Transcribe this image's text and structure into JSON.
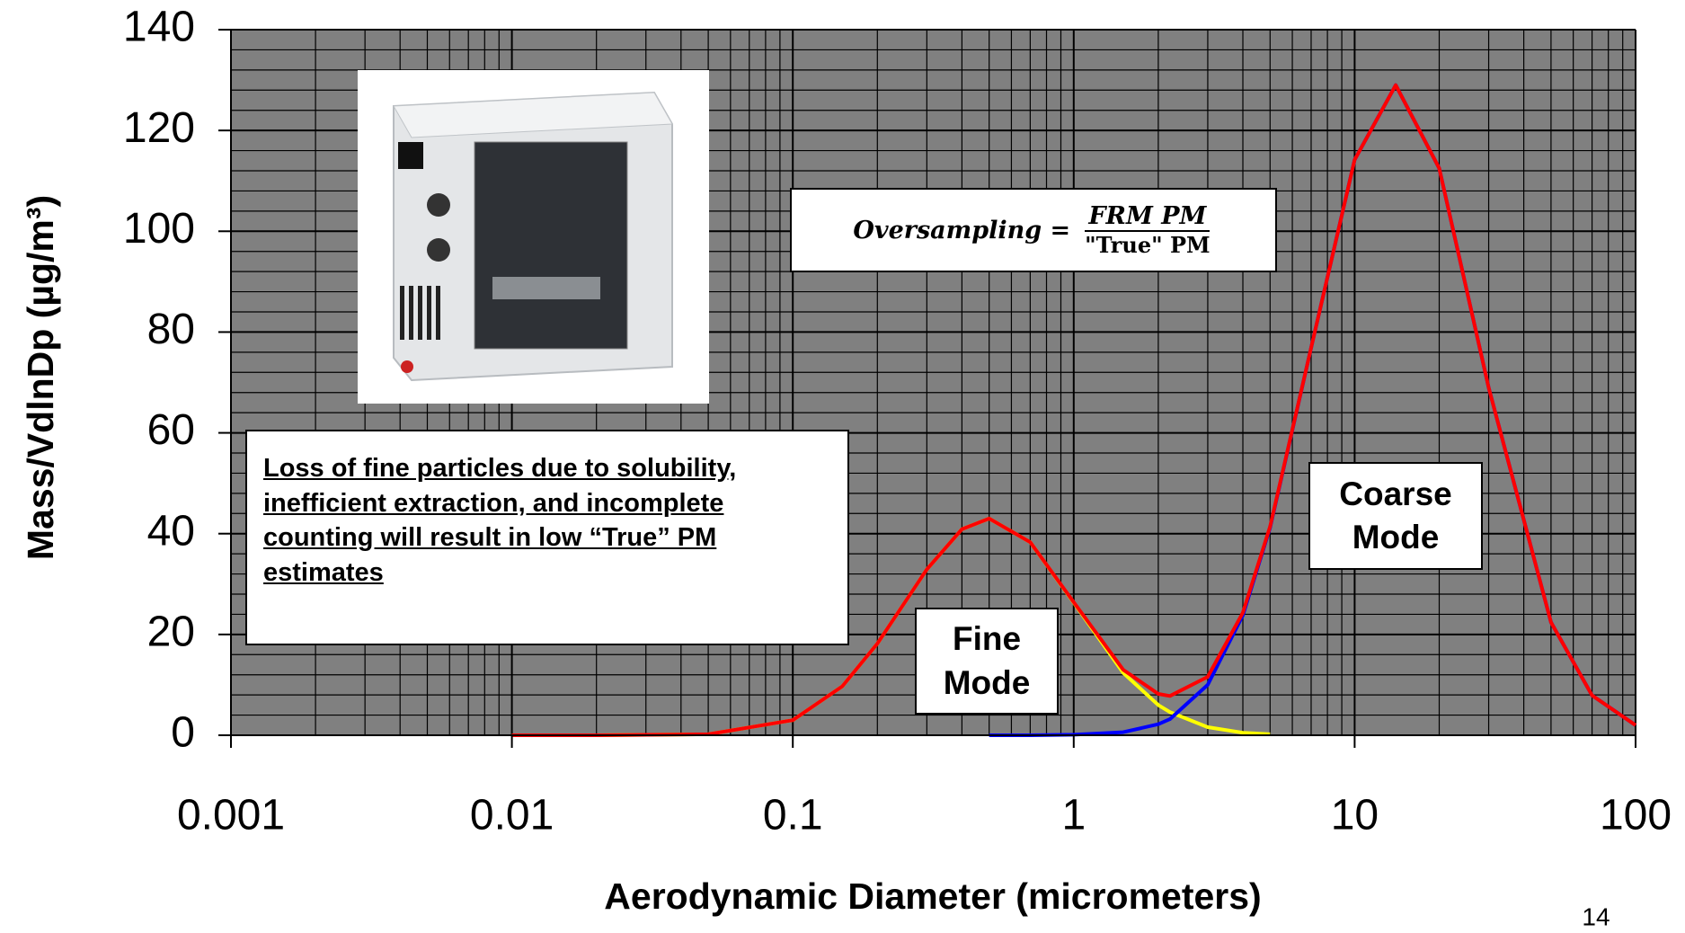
{
  "chart_data": {
    "type": "line",
    "x_label": "Aerodynamic Diameter (micrometers)",
    "y_label": "Mass/VdlnDp (µg/m³)",
    "x": [
      0.01,
      0.02,
      0.05,
      0.1,
      0.15,
      0.2,
      0.3,
      0.4,
      0.5,
      0.7,
      1,
      1.5,
      2,
      2.2,
      3,
      4,
      5,
      7,
      10,
      14,
      20,
      30,
      50,
      70,
      100
    ],
    "series": [
      {
        "color": "#ffff00",
        "values": [
          0,
          0,
          0.2,
          3,
          9.7,
          18.2,
          32.9,
          40.9,
          43,
          38.3,
          26.3,
          12.4,
          6,
          4.6,
          1.6,
          0.5,
          0.2,
          null,
          null,
          null,
          null,
          null,
          null,
          null,
          null
        ]
      },
      {
        "color": "#0000ff",
        "values": [
          null,
          null,
          null,
          null,
          null,
          null,
          null,
          null,
          0,
          0,
          0.1,
          0.6,
          2.2,
          3.2,
          10,
          23.8,
          41.2,
          76.9,
          114.2,
          129,
          112.5,
          69,
          22.4,
          7.9,
          2
        ]
      },
      {
        "color": "#ff0000",
        "values": [
          0,
          0,
          0.2,
          3,
          9.7,
          18.2,
          32.9,
          40.9,
          43,
          38.3,
          26.4,
          13,
          8.2,
          7.8,
          11.6,
          24.3,
          41.4,
          76.9,
          114.2,
          129,
          112.5,
          69,
          22.4,
          7.9,
          2
        ]
      }
    ],
    "xlim": [
      0.001,
      100
    ],
    "xticks": [
      0.001,
      0.01,
      0.1,
      1,
      10,
      100
    ],
    "x_log": true,
    "ylim": [
      0,
      140
    ],
    "yticks": [
      0,
      20,
      40,
      60,
      80,
      100,
      120,
      140
    ],
    "grid": true,
    "plot_background": "#808080",
    "annotations": {
      "loss_note": "Loss of fine particles due to solubility, inefficient extraction, and incomplete counting will result in low “True” PM estimates",
      "fine_mode": "Fine Mode",
      "coarse_mode": "Coarse Mode",
      "formula_lhs": "Oversampling =",
      "formula_numerator": "FRM PM",
      "formula_denominator": "\"True\" PM"
    },
    "page_number": "14"
  }
}
